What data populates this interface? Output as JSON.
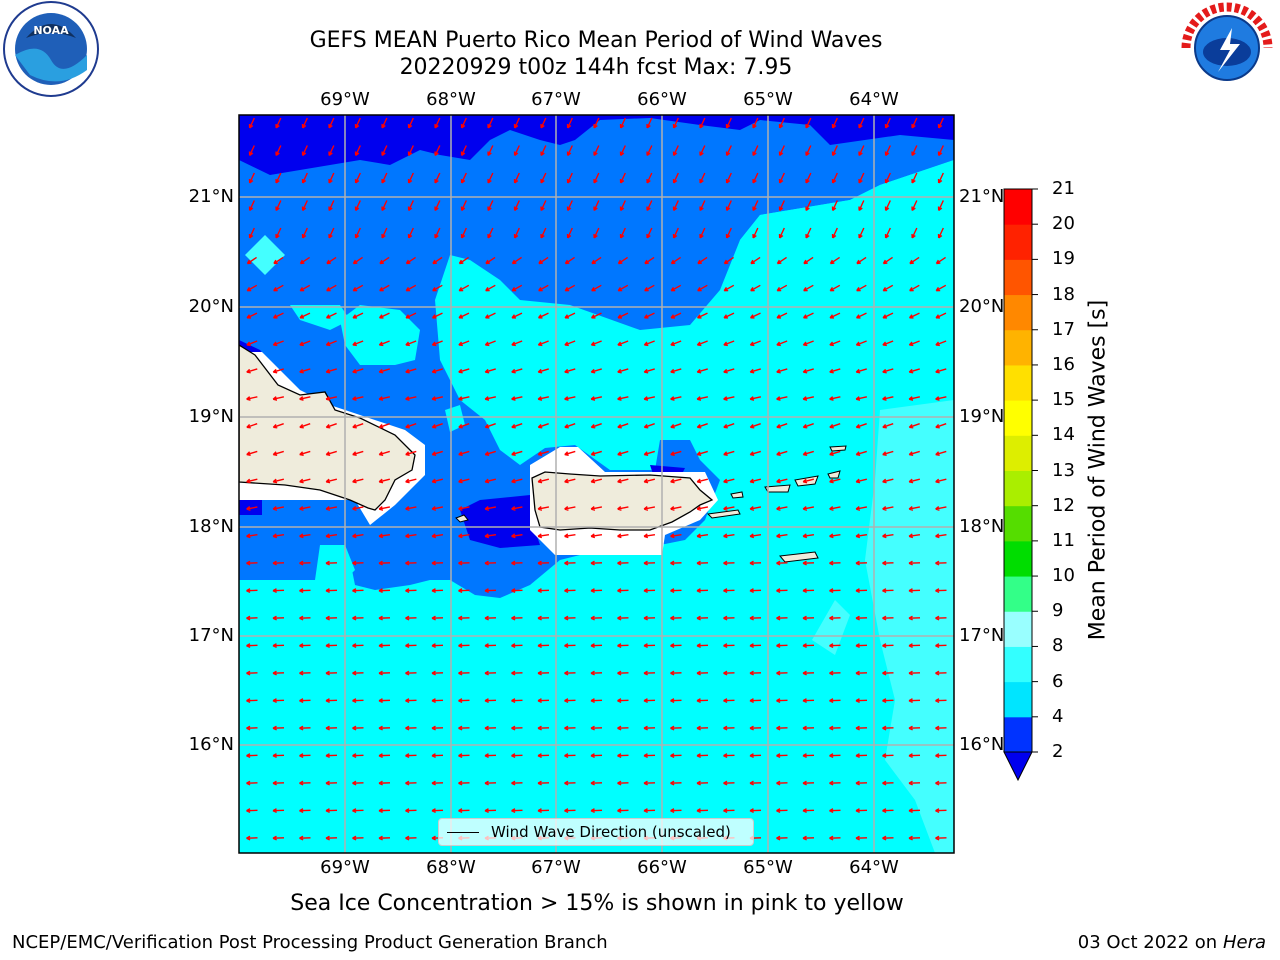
{
  "title": {
    "line1": "GEFS MEAN Puerto Rico Mean Period of Wind Waves",
    "line2": "20220929 t00z 144h fcst   Max: 7.95"
  },
  "axes": {
    "lon_labels": [
      "69°W",
      "68°W",
      "67°W",
      "66°W",
      "65°W",
      "64°W"
    ],
    "lat_labels": [
      "21°N",
      "20°N",
      "19°N",
      "18°N",
      "17°N",
      "16°N"
    ]
  },
  "colorbar": {
    "label": "Mean Period of Wind Waves [s]",
    "ticks": [
      "2",
      "4",
      "6",
      "8",
      "9",
      "10",
      "11",
      "12",
      "13",
      "14",
      "15",
      "16",
      "17",
      "18",
      "19",
      "20",
      "21"
    ],
    "colors": [
      "#0033ff",
      "#00e5ff",
      "#33ffff",
      "#99ffff",
      "#33ff88",
      "#00dd00",
      "#55dd00",
      "#aaee00",
      "#ddee00",
      "#ffff00",
      "#ffe000",
      "#ffb300",
      "#ff8800",
      "#ff5500",
      "#ff2200",
      "#ff0000"
    ],
    "extend_color": "#0000ee"
  },
  "legend": {
    "label": "Wind Wave Direction (unscaled)"
  },
  "note": "Sea Ice Concentration > 15% is shown in pink to yellow",
  "footer": {
    "left": "NCEP/EMC/Verification Post Processing Product Generation Branch",
    "date": "03 Oct 2022 on ",
    "machine": "Hera"
  },
  "logos": {
    "noaa": "NOAA",
    "nws": "NATIONAL WEATHER SERVICE"
  },
  "map_colors": {
    "light_blue": "#0077ff",
    "dark_blue": "#0000ee",
    "cyan": "#00ffff",
    "pale_cyan": "#44ffff",
    "land": "#efecdc",
    "arrows": "#ff0000"
  }
}
